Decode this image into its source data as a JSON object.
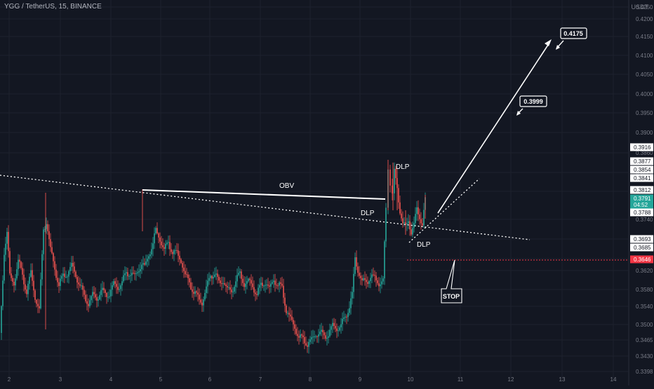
{
  "header": {
    "symbol_title": "YGG / TetherUS, 15, BINANCE",
    "currency": "USDT"
  },
  "colors": {
    "background": "#131722",
    "grid": "#1e222d",
    "axis_text": "#787b86",
    "up": "#26a69a",
    "down": "#ef5350",
    "annotation": "#ffffff",
    "stop": "#f23645"
  },
  "chart_data": {
    "type": "candlestick",
    "interval": "15",
    "exchange": "BINANCE",
    "y_axis_ticks": [
      0.425,
      0.42,
      0.415,
      0.41,
      0.405,
      0.4,
      0.395,
      0.39,
      0.386,
      0.382,
      0.378,
      0.374,
      0.37,
      0.366,
      0.362,
      0.358,
      0.354,
      0.35,
      0.3465,
      0.343,
      0.3398
    ],
    "x_axis_ticks": [
      "2",
      "3",
      "4",
      "5",
      "6",
      "7",
      "8",
      "9",
      "10",
      "11",
      "12",
      "13",
      "14"
    ],
    "price_labels": [
      {
        "text": "0.3916",
        "style": "white"
      },
      {
        "text": "0.3877",
        "style": "white"
      },
      {
        "text": "0.3854",
        "style": "white"
      },
      {
        "text": "0.3841",
        "style": "white"
      },
      {
        "text": "0.3812",
        "style": "white"
      },
      {
        "text": "0.3791",
        "style": "green"
      },
      {
        "text": "04:52",
        "style": "green"
      },
      {
        "text": "0.3788",
        "style": "white"
      },
      {
        "text": "0.3693",
        "style": "white"
      },
      {
        "text": "0.3685",
        "style": "white"
      },
      {
        "text": "0.3646",
        "style": "red"
      }
    ],
    "close_price": 0.3791,
    "stop_price": 0.3646,
    "targets": [
      0.3999,
      0.4175
    ],
    "annotations": {
      "obv": "OBV",
      "dlp_top": "DLP",
      "dlp_mid": "DLP",
      "dlp_low": "DLP",
      "target1": "0.3999",
      "target2": "0.4175",
      "stop": "STOP"
    }
  }
}
